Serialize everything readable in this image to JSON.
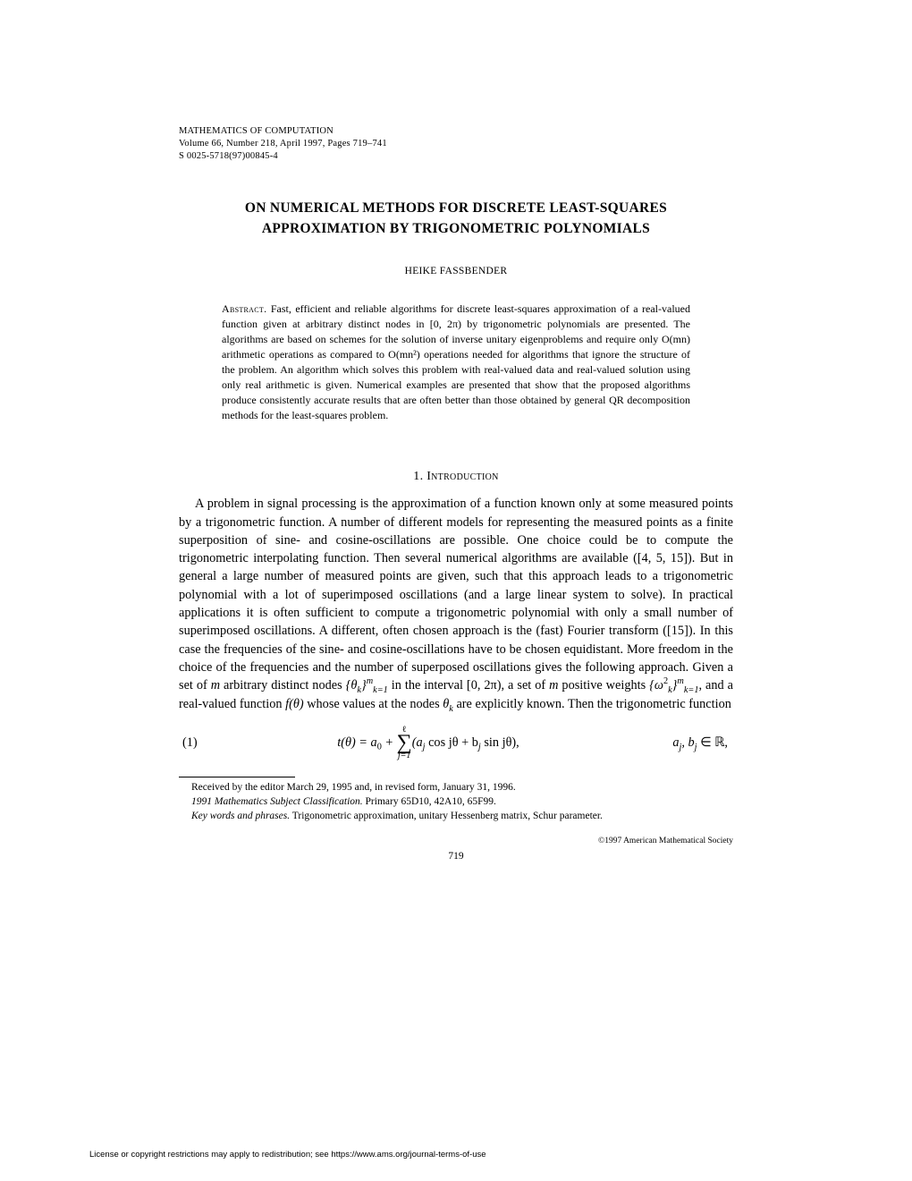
{
  "journal": {
    "name": "MATHEMATICS OF COMPUTATION",
    "volume_line": "Volume 66, Number 218, April 1997, Pages 719–741",
    "sid": "S 0025-5718(97)00845-4"
  },
  "title_line1": "ON NUMERICAL METHODS FOR DISCRETE LEAST-SQUARES",
  "title_line2": "APPROXIMATION BY TRIGONOMETRIC POLYNOMIALS",
  "author": "HEIKE FASSBENDER",
  "abstract": {
    "label": "Abstract.",
    "text": "Fast, efficient and reliable algorithms for discrete least-squares approximation of a real-valued function given at arbitrary distinct nodes in [0, 2π) by trigonometric polynomials are presented. The algorithms are based on schemes for the solution of inverse unitary eigenproblems and require only O(mn) arithmetic operations as compared to O(mn²) operations needed for algorithms that ignore the structure of the problem. An algorithm which solves this problem with real-valued data and real-valued solution using only real arithmetic is given. Numerical examples are presented that show that the proposed algorithms produce consistently accurate results that are often better than those obtained by general QR decomposition methods for the least-squares problem."
  },
  "section1": {
    "heading": "1. Introduction",
    "para1_a": "A problem in signal processing is the approximation of a function known only at some measured points by a trigonometric function. A number of different models for representing the measured points as a finite superposition of sine- and cosine-oscillations are possible. One choice could be to compute the trigonometric interpolating function. Then several numerical algorithms are available ([4, 5, 15]). But in general a large number of measured points are given, such that this approach leads to a trigonometric polynomial with a lot of superimposed oscillations (and a large linear system to solve). In practical applications it is often sufficient to compute a trigonometric polynomial with only a small number of superimposed oscillations. A different, often chosen approach is the (fast) Fourier transform ([15]). In this case the frequencies of the sine- and cosine-oscillations have to be chosen equidistant. More freedom in the choice of the frequencies and the number of superposed oscillations gives the following approach. Given a set of ",
    "para1_b": " arbitrary distinct nodes ",
    "para1_c": " in the interval [0, 2π), a set of ",
    "para1_d": " positive weights ",
    "para1_e": ", and a real-valued function ",
    "para1_f": " whose values at the nodes ",
    "para1_g": " are explicitly known. Then the trigonometric function"
  },
  "equation1": {
    "number": "(1)",
    "lhs": "t(θ) = a",
    "sub0": "0",
    "plus": " + ",
    "sum_top": "ℓ",
    "sum_bot": "j=1",
    "inside": "(a",
    "subj1": "j",
    "cos": " cos jθ + b",
    "subj2": "j",
    "sin": " sin jθ),",
    "cond_a": "a",
    "cond_b": ", b",
    "cond_tail": " ∈ ℝ,"
  },
  "footnotes": {
    "received": "Received by the editor March 29, 1995 and, in revised form, January 31, 1996.",
    "msc_label": "1991 Mathematics Subject Classification.",
    "msc_text": " Primary 65D10, 42A10, 65F99.",
    "kw_label": "Key words and phrases.",
    "kw_text": " Trigonometric approximation, unitary Hessenberg matrix, Schur parameter."
  },
  "copyright": "©1997 American Mathematical Society",
  "page_number": "719",
  "license": "License or copyright restrictions may apply to redistribution; see https://www.ams.org/journal-terms-of-use",
  "math": {
    "m": "m",
    "theta_set": "{θ",
    "theta_sub": "k",
    "theta_close": "}",
    "theta_idx": "k=1",
    "theta_sup": "m",
    "omega_set": "{ω",
    "omega_sub": "k",
    "omega_sup2": "2",
    "omega_close": "}",
    "ftheta": "f(θ)",
    "thetak": "θ",
    "thetak_sub": "k",
    "subj": "j"
  }
}
